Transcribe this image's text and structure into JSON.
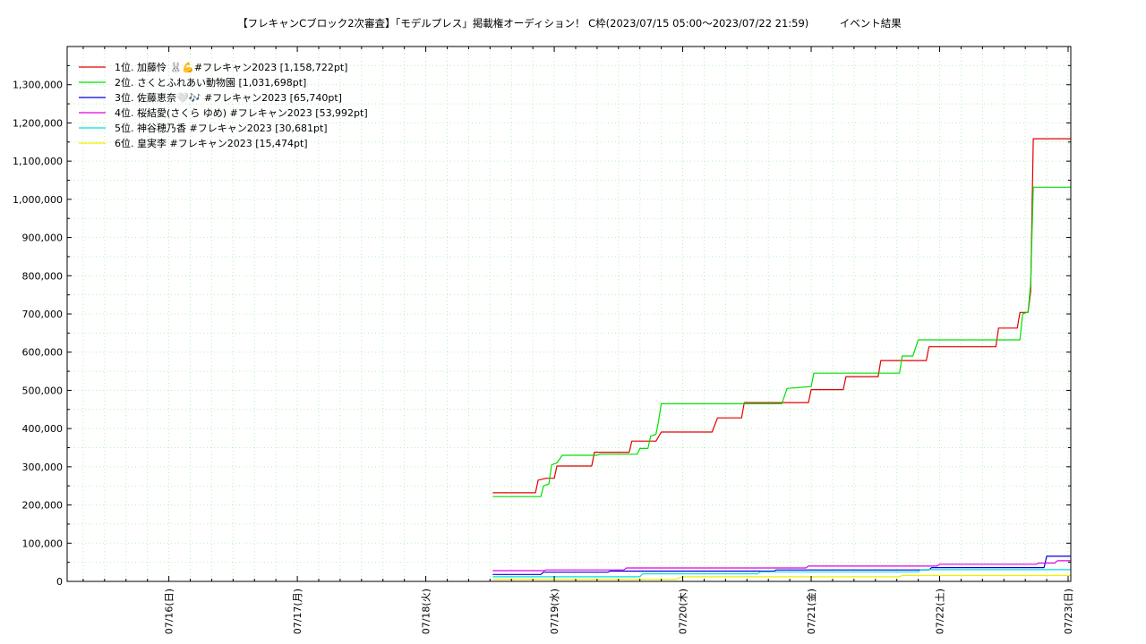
{
  "chart_data": {
    "type": "line",
    "title": "【フレキャンCブロック2次審査】「モデルプレス」掲載権オーディション！ C枠(2023/07/15 05:00〜2023/07/22 21:59)　　　イベント結果",
    "xlabel": "",
    "ylabel": "",
    "x_start": "2023-07-15 05:00",
    "x_end": "2023-07-23 00:30",
    "x_ticks": [
      "07/16(日)",
      "07/17(月)",
      "07/18(火)",
      "07/19(水)",
      "07/20(木)",
      "07/21(金)",
      "07/22(土)",
      "07/23(日)"
    ],
    "ylim": [
      0,
      1400000
    ],
    "y_ticks": [
      "0",
      "100,000",
      "200,000",
      "300,000",
      "400,000",
      "500,000",
      "600,000",
      "700,000",
      "800,000",
      "900,000",
      "1,000,000",
      "1,100,000",
      "1,200,000",
      "1,300,000"
    ],
    "grid": true,
    "legend_position": "top-left",
    "series": [
      {
        "name": "1位. 加藤怜 🐰💪#フレキャン2023 [1,158,722pt]",
        "color": "#e00000",
        "points": [
          [
            "2023-07-18 12:30",
            232000
          ],
          [
            "2023-07-18 20:30",
            232000
          ],
          [
            "2023-07-18 21:00",
            265000
          ],
          [
            "2023-07-18 22:30",
            270000
          ],
          [
            "2023-07-19 00:00",
            270000
          ],
          [
            "2023-07-19 00:30",
            302000
          ],
          [
            "2023-07-19 07:00",
            302000
          ],
          [
            "2023-07-19 07:30",
            338000
          ],
          [
            "2023-07-19 14:00",
            338000
          ],
          [
            "2023-07-19 14:30",
            367000
          ],
          [
            "2023-07-19 19:00",
            367000
          ],
          [
            "2023-07-19 20:00",
            391000
          ],
          [
            "2023-07-20 05:30",
            391000
          ],
          [
            "2023-07-20 06:30",
            428000
          ],
          [
            "2023-07-20 11:00",
            428000
          ],
          [
            "2023-07-20 11:30",
            468000
          ],
          [
            "2023-07-20 23:30",
            468000
          ],
          [
            "2023-07-21 00:00",
            502000
          ],
          [
            "2023-07-21 06:00",
            502000
          ],
          [
            "2023-07-21 06:30",
            536000
          ],
          [
            "2023-07-21 12:30",
            536000
          ],
          [
            "2023-07-21 13:00",
            578000
          ],
          [
            "2023-07-21 21:30",
            578000
          ],
          [
            "2023-07-21 22:00",
            614000
          ],
          [
            "2023-07-22 10:30",
            614000
          ],
          [
            "2023-07-22 11:00",
            663000
          ],
          [
            "2023-07-22 14:30",
            663000
          ],
          [
            "2023-07-22 15:00",
            704000
          ],
          [
            "2023-07-22 16:30",
            704000
          ],
          [
            "2023-07-22 17:00",
            760000
          ],
          [
            "2023-07-22 17:30",
            1158722
          ],
          [
            "2023-07-23 00:30",
            1158722
          ]
        ]
      },
      {
        "name": "2位. さくとふれあい動物園 [1,031,698pt]",
        "color": "#00e000",
        "points": [
          [
            "2023-07-18 12:30",
            222000
          ],
          [
            "2023-07-18 21:30",
            222000
          ],
          [
            "2023-07-18 22:00",
            250000
          ],
          [
            "2023-07-18 23:00",
            255000
          ],
          [
            "2023-07-18 23:30",
            305000
          ],
          [
            "2023-07-19 00:30",
            310000
          ],
          [
            "2023-07-19 01:30",
            330000
          ],
          [
            "2023-07-19 08:00",
            330000
          ],
          [
            "2023-07-19 08:30",
            333000
          ],
          [
            "2023-07-19 15:30",
            333000
          ],
          [
            "2023-07-19 16:00",
            348000
          ],
          [
            "2023-07-19 17:30",
            348000
          ],
          [
            "2023-07-19 18:00",
            380000
          ],
          [
            "2023-07-19 19:00",
            385000
          ],
          [
            "2023-07-19 19:30",
            420000
          ],
          [
            "2023-07-19 20:00",
            465000
          ],
          [
            "2023-07-20 18:30",
            465000
          ],
          [
            "2023-07-20 19:30",
            505000
          ],
          [
            "2023-07-21 00:00",
            510000
          ],
          [
            "2023-07-21 00:30",
            545000
          ],
          [
            "2023-07-21 16:30",
            545000
          ],
          [
            "2023-07-21 17:00",
            590000
          ],
          [
            "2023-07-21 19:00",
            590000
          ],
          [
            "2023-07-21 20:00",
            632000
          ],
          [
            "2023-07-22 15:00",
            632000
          ],
          [
            "2023-07-22 15:30",
            700000
          ],
          [
            "2023-07-22 16:30",
            705000
          ],
          [
            "2023-07-22 17:00",
            780000
          ],
          [
            "2023-07-22 17:30",
            1031698
          ],
          [
            "2023-07-23 00:30",
            1031698
          ]
        ]
      },
      {
        "name": "3位. 佐藤恵奈🤍🎶 #フレキャン2023 [65,740pt]",
        "color": "#0000e0",
        "points": [
          [
            "2023-07-18 12:30",
            18000
          ],
          [
            "2023-07-18 21:30",
            18000
          ],
          [
            "2023-07-18 22:00",
            24000
          ],
          [
            "2023-07-19 10:00",
            24000
          ],
          [
            "2023-07-19 10:30",
            27000
          ],
          [
            "2023-07-20 17:00",
            27000
          ],
          [
            "2023-07-20 17:30",
            30000
          ],
          [
            "2023-07-21 22:00",
            30000
          ],
          [
            "2023-07-21 22:30",
            36000
          ],
          [
            "2023-07-22 19:30",
            36000
          ],
          [
            "2023-07-22 20:00",
            65740
          ],
          [
            "2023-07-23 00:30",
            65740
          ]
        ]
      },
      {
        "name": "4位. 桜結愛(さくら ゆめ) #フレキャン2023 [53,992pt]",
        "color": "#e000e0",
        "points": [
          [
            "2023-07-18 12:30",
            28000
          ],
          [
            "2023-07-18 22:00",
            28000
          ],
          [
            "2023-07-18 22:30",
            30000
          ],
          [
            "2023-07-19 13:00",
            30000
          ],
          [
            "2023-07-19 13:30",
            35000
          ],
          [
            "2023-07-20 23:00",
            35000
          ],
          [
            "2023-07-20 23:30",
            40000
          ],
          [
            "2023-07-21 23:30",
            40000
          ],
          [
            "2023-07-22 00:00",
            45000
          ],
          [
            "2023-07-22 18:00",
            45000
          ],
          [
            "2023-07-22 18:30",
            48000
          ],
          [
            "2023-07-22 21:30",
            48000
          ],
          [
            "2023-07-22 22:00",
            53992
          ],
          [
            "2023-07-23 00:30",
            53992
          ]
        ]
      },
      {
        "name": "5位. 神谷穂乃香 #フレキャン2023 [30,681pt]",
        "color": "#00e0e0",
        "points": [
          [
            "2023-07-18 12:30",
            12000
          ],
          [
            "2023-07-19 16:00",
            12000
          ],
          [
            "2023-07-19 16:30",
            20000
          ],
          [
            "2023-07-20 14:00",
            20000
          ],
          [
            "2023-07-20 14:30",
            25000
          ],
          [
            "2023-07-21 20:00",
            25000
          ],
          [
            "2023-07-21 20:30",
            30681
          ],
          [
            "2023-07-23 00:30",
            30681
          ]
        ]
      },
      {
        "name": "6位. 皇実李 #フレキャン2023 [15,474pt]",
        "color": "#f0f000",
        "points": [
          [
            "2023-07-18 12:30",
            5000
          ],
          [
            "2023-07-19 22:30",
            5000
          ],
          [
            "2023-07-20 00:00",
            12000
          ],
          [
            "2023-07-21 16:30",
            12000
          ],
          [
            "2023-07-21 17:00",
            15474
          ],
          [
            "2023-07-23 00:30",
            15474
          ]
        ]
      }
    ]
  }
}
